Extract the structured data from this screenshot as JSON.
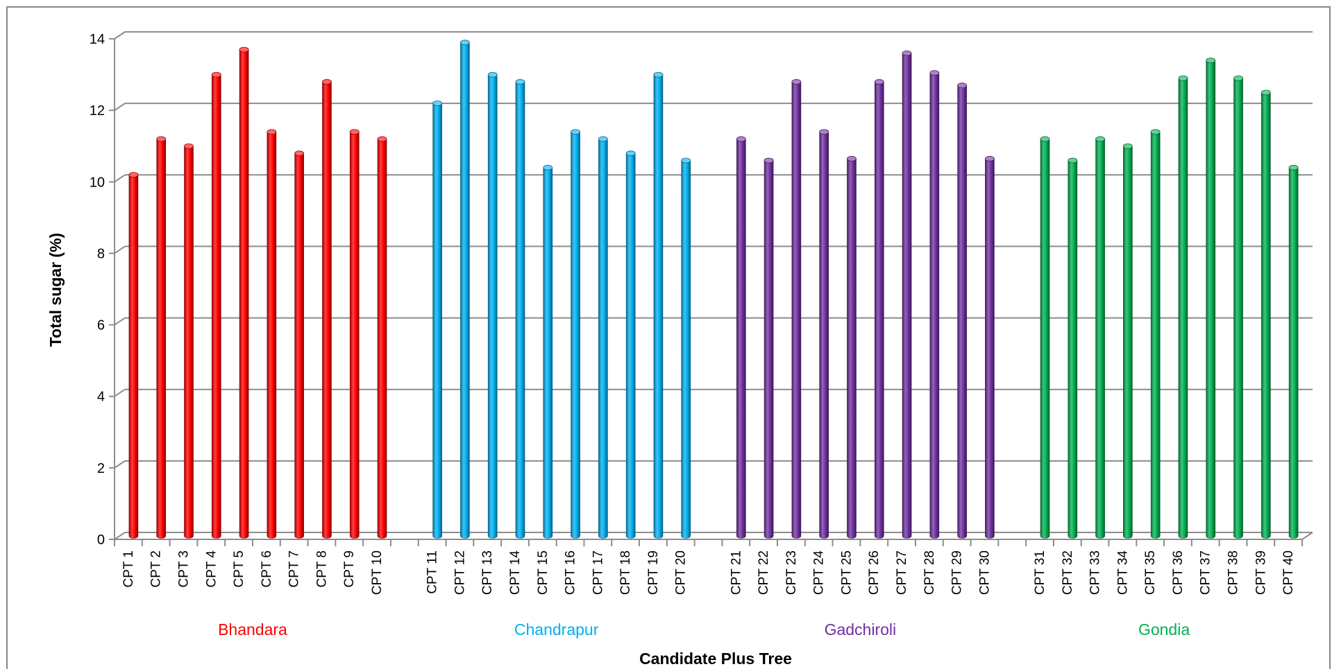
{
  "chart_data": {
    "type": "bar",
    "title": "",
    "xlabel": "Candidate Plus Tree",
    "ylabel": "Total sugar (%)",
    "ylim": [
      0,
      14
    ],
    "yticks": [
      0,
      2,
      4,
      6,
      8,
      10,
      12,
      14
    ],
    "grid": true,
    "legend": "none",
    "groups": [
      {
        "name": "Bhandara",
        "color": "#ff0000",
        "categories": [
          "CPT 1",
          "CPT 2",
          "CPT 3",
          "CPT 4",
          "CPT 5",
          "CPT 6",
          "CPT 7",
          "CPT 8",
          "CPT 9",
          "CPT 10"
        ],
        "values": [
          10.1,
          11.1,
          10.9,
          12.9,
          13.6,
          11.3,
          10.7,
          12.7,
          11.3,
          11.1
        ]
      },
      {
        "name": "Chandrapur",
        "color": "#00b0f0",
        "categories": [
          "CPT 11",
          "CPT 12",
          "CPT 13",
          "CPT 14",
          "CPT 15",
          "CPT 16",
          "CPT 17",
          "CPT 18",
          "CPT 19",
          "CPT 20"
        ],
        "values": [
          12.1,
          13.8,
          12.9,
          12.7,
          10.3,
          11.3,
          11.1,
          10.7,
          12.9,
          10.5
        ]
      },
      {
        "name": "Gadchiroli",
        "color": "#7030a0",
        "categories": [
          "CPT 21",
          "CPT 22",
          "CPT 23",
          "CPT 24",
          "CPT 25",
          "CPT 26",
          "CPT 27",
          "CPT 28",
          "CPT 29",
          "CPT 30"
        ],
        "values": [
          11.1,
          10.5,
          12.7,
          11.3,
          10.55,
          12.7,
          13.5,
          12.95,
          12.6,
          10.55
        ]
      },
      {
        "name": "Gondia",
        "color": "#00b050",
        "categories": [
          "CPT 31",
          "CPT 32",
          "CPT 33",
          "CPT 34",
          "CPT 35",
          "CPT 36",
          "CPT 37",
          "CPT 38",
          "CPT 39",
          "CPT 40"
        ],
        "values": [
          11.1,
          10.5,
          11.1,
          10.9,
          11.3,
          12.8,
          13.3,
          12.8,
          12.4,
          10.3
        ]
      }
    ]
  }
}
